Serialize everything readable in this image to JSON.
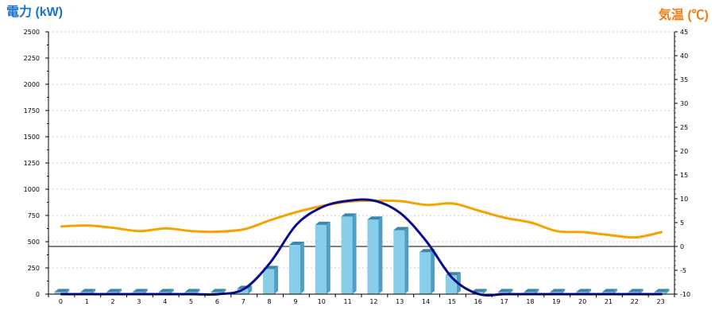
{
  "chart_data": {
    "type": "bar+line",
    "categories": [
      "0",
      "1",
      "2",
      "3",
      "4",
      "5",
      "6",
      "7",
      "8",
      "9",
      "10",
      "11",
      "12",
      "13",
      "14",
      "15",
      "16",
      "17",
      "18",
      "19",
      "20",
      "21",
      "22",
      "23"
    ],
    "y_left": {
      "title": "電力 (kW)",
      "ticks": [
        "0",
        "250",
        "500",
        "750",
        "1000",
        "1250",
        "1500",
        "1750",
        "2000",
        "2250",
        "2500"
      ],
      "range": [
        0,
        2500
      ],
      "color": "#1a73c8"
    },
    "y_right": {
      "title": "気温 (℃)",
      "ticks": [
        "-10",
        "-5",
        "0",
        "5",
        "10",
        "15",
        "20",
        "25",
        "30",
        "35",
        "40",
        "45"
      ],
      "range": [
        -10,
        45
      ],
      "color": "#f07c12"
    },
    "grid": true,
    "series": [
      {
        "kind": "bar",
        "axis": "left",
        "color": "#87ceeb",
        "values": [
          20,
          20,
          20,
          20,
          20,
          20,
          20,
          50,
          240,
          470,
          660,
          740,
          710,
          610,
          400,
          180,
          20,
          20,
          20,
          20,
          20,
          20,
          20,
          20
        ]
      },
      {
        "kind": "line",
        "axis": "right",
        "color": "#f5a300",
        "values": [
          4.2,
          4.4,
          3.9,
          3.2,
          3.8,
          3.2,
          3.1,
          3.6,
          5.5,
          7.2,
          8.5,
          9.4,
          9.6,
          9.5,
          8.7,
          9.0,
          7.5,
          6.0,
          5.0,
          3.2,
          3.0,
          2.4,
          1.9,
          3.0
        ]
      },
      {
        "kind": "line",
        "axis": "left",
        "color": "#0a0a8f",
        "values": [
          0,
          0,
          0,
          0,
          0,
          0,
          0,
          50,
          300,
          660,
          830,
          890,
          890,
          770,
          500,
          150,
          0,
          0,
          0,
          0,
          0,
          0,
          0,
          0
        ]
      }
    ],
    "reference_line": {
      "axis": "right",
      "value": 0
    }
  }
}
